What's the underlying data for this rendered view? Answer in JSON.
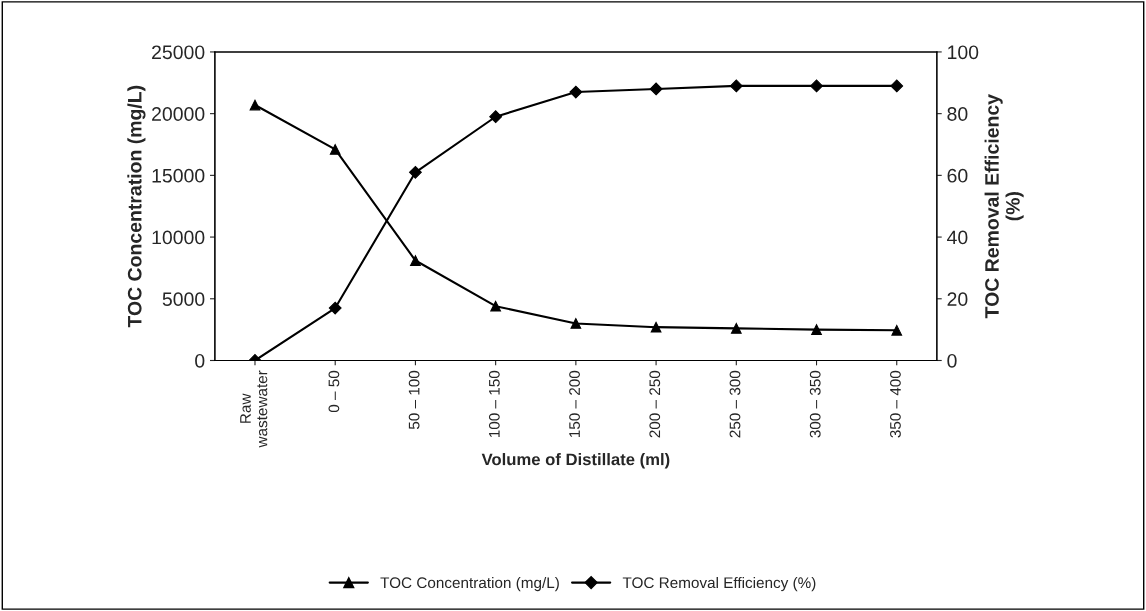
{
  "chart_data": {
    "type": "line",
    "xlabel": "Volume of Distillate (ml)",
    "ylabel": "TOC Concentration (mg/L)",
    "y2label": "TOC Removal Efficiency\n(%)",
    "categories": [
      "Raw\nwastewater",
      "0 – 50",
      "50 – 100",
      "100 – 150",
      "150 – 200",
      "200 – 250",
      "250 – 300",
      "300 – 350",
      "350 – 400"
    ],
    "series": [
      {
        "name": "TOC Concentration (mg/L)",
        "color": "#000000",
        "marker": "triangle",
        "values": [
          20700,
          17100,
          8100,
          4400,
          3000,
          2700,
          2600,
          2500,
          2450
        ]
      },
      {
        "name": "TOC Removal Efficiency (%)",
        "color": "#000000",
        "marker": "diamond",
        "axis": "y2",
        "values": [
          0,
          17,
          61,
          79,
          87,
          88,
          89,
          89,
          89
        ]
      }
    ],
    "ylim": [
      0,
      25000
    ],
    "yticks": [
      0,
      5000,
      10000,
      15000,
      20000,
      25000
    ],
    "y2lim": [
      0,
      100
    ],
    "y2ticks": [
      0,
      20,
      40,
      60,
      80,
      100
    ],
    "grid": false,
    "legend": "bottom",
    "line_style": "solid"
  }
}
